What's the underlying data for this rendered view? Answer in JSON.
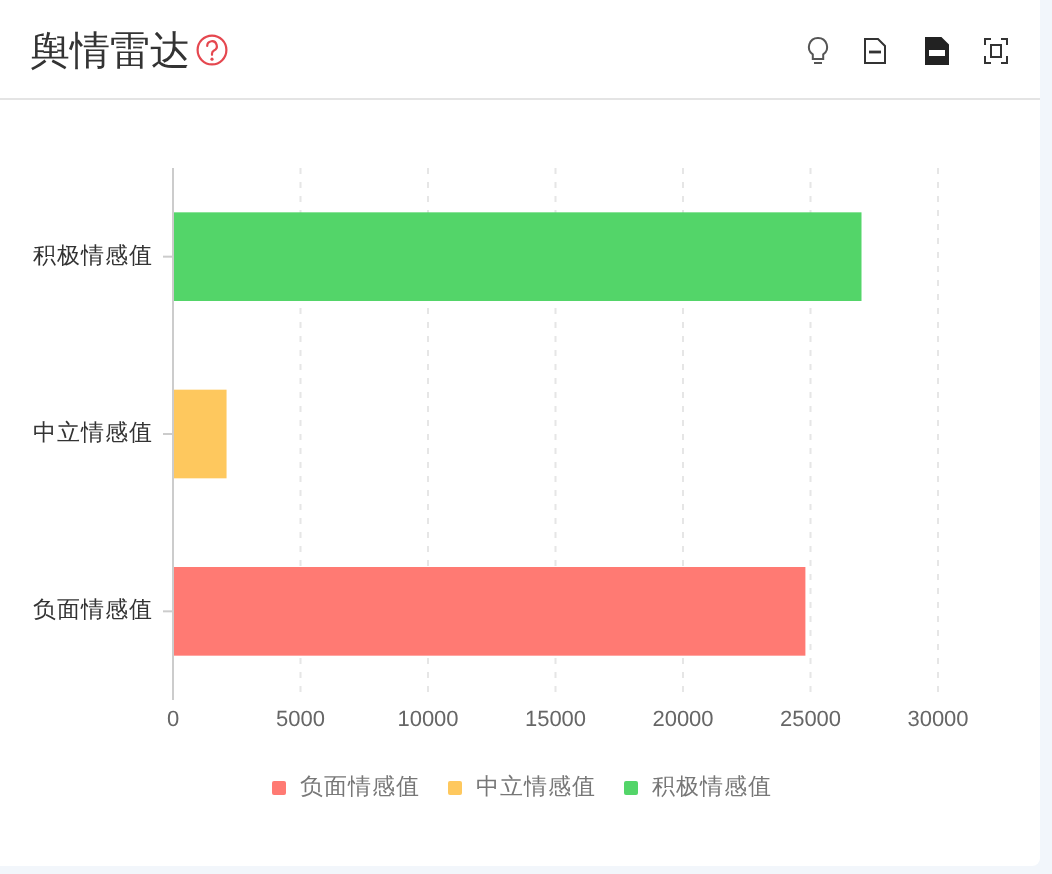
{
  "chart_data": {
    "type": "bar",
    "title": "舆情雷达",
    "orientation": "horizontal",
    "stacked": true,
    "categories": [
      "积极情感值",
      "中立情感值",
      "负面情感值"
    ],
    "series": [
      {
        "name": "负面情感值",
        "color": "#ff7a73",
        "values": [
          null,
          null,
          24800
        ]
      },
      {
        "name": "中立情感值",
        "color": "#fec85e",
        "values": [
          null,
          2100,
          null
        ]
      },
      {
        "name": "积极情感值",
        "color": "#53d569",
        "values": [
          27000,
          null,
          null
        ]
      }
    ],
    "xlim": [
      0,
      30000
    ],
    "xticks": [
      0,
      5000,
      10000,
      15000,
      20000,
      25000,
      30000
    ],
    "grid": "x",
    "legend": "bottom"
  }
}
